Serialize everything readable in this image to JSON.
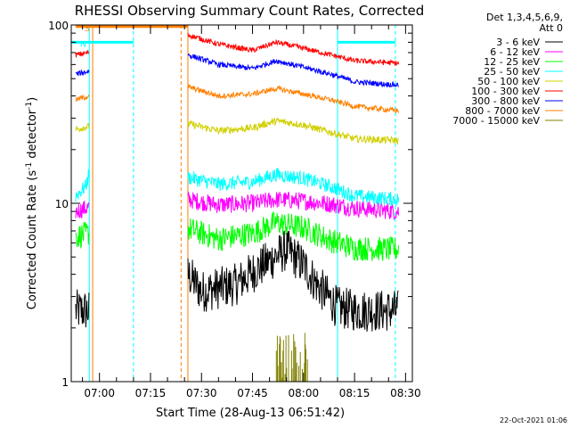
{
  "chart_data": {
    "type": "line",
    "title": "RHESSI Observing Summary Count Rates, Corrected",
    "xlabel": "Start Time (28-Aug-13 06:51:42)",
    "ylabel_main": "Corrected Count Rate (s",
    "ylabel_sup1": "-1",
    "ylabel_mid": " detector",
    "ylabel_sup2": "-1",
    "ylabel_end": ")",
    "yscale": "log",
    "ylim": [
      1,
      100
    ],
    "xlim": [
      "06:51:42",
      "08:32:00"
    ],
    "y_tick_labels": [
      {
        "label": "1",
        "value": 1
      },
      {
        "label": "10",
        "value": 10
      },
      {
        "label": "100",
        "value": 100
      }
    ],
    "x_tick_labels": [
      {
        "label": "07:00",
        "value": "07:00"
      },
      {
        "label": "07:15",
        "value": "07:15"
      },
      {
        "label": "07:30",
        "value": "07:30"
      },
      {
        "label": "07:45",
        "value": "07:45"
      },
      {
        "label": "08:00",
        "value": "08:00"
      },
      {
        "label": "08:15",
        "value": "08:15"
      },
      {
        "label": "08:30",
        "value": "08:30"
      }
    ],
    "legend_header": [
      "Det 1,3,4,5,6,9,",
      "Att 0"
    ],
    "legend_position": "right",
    "series": [
      {
        "name": "3 - 6 keV",
        "color": "#000000",
        "segments": [
          {
            "t": [
              "06:53",
              "06:57"
            ],
            "v": [
              2.5,
              2.5
            ],
            "noise": 0.12
          },
          {
            "t": [
              "07:26",
              "07:30",
              "07:40",
              "07:48",
              "07:55",
              "08:00",
              "08:04",
              "08:10",
              "08:16",
              "08:28"
            ],
            "v": [
              4.0,
              3.2,
              3.5,
              4.5,
              5.5,
              4.5,
              3.5,
              2.6,
              2.5,
              2.5
            ],
            "noise": 0.12
          }
        ]
      },
      {
        "name": "6 - 12 keV",
        "color": "#ff00ff",
        "segments": [
          {
            "t": [
              "06:53",
              "06:57"
            ],
            "v": [
              9.0,
              9.5
            ],
            "noise": 0.05
          },
          {
            "t": [
              "07:26",
              "07:35",
              "07:45",
              "07:52",
              "08:00",
              "08:08",
              "08:15",
              "08:28"
            ],
            "v": [
              10.5,
              9.8,
              10.0,
              10.5,
              10.3,
              9.9,
              9.4,
              9.0
            ],
            "noise": 0.05
          }
        ]
      },
      {
        "name": "12 - 25 keV",
        "color": "#00ff00",
        "segments": [
          {
            "t": [
              "06:53",
              "06:57"
            ],
            "v": [
              6.5,
              6.8
            ],
            "noise": 0.07
          },
          {
            "t": [
              "07:26",
              "07:35",
              "07:45",
              "07:52",
              "08:00",
              "08:08",
              "08:15",
              "08:28"
            ],
            "v": [
              7.2,
              6.3,
              6.8,
              7.8,
              7.3,
              6.2,
              5.6,
              5.5
            ],
            "noise": 0.07
          }
        ]
      },
      {
        "name": "25 - 50 keV",
        "color": "#00ffff",
        "segments": [
          {
            "t": [
              "06:53",
              "06:56",
              "06:57"
            ],
            "v": [
              11.0,
              12.5,
              15.0
            ],
            "noise": 0.04
          },
          {
            "t": [
              "07:26",
              "07:35",
              "07:45",
              "07:52",
              "08:00",
              "08:08",
              "08:15",
              "08:28"
            ],
            "v": [
              14.0,
              12.8,
              13.2,
              14.5,
              13.8,
              12.4,
              11.0,
              10.5
            ],
            "noise": 0.04
          }
        ]
      },
      {
        "name": "50 - 100 keV",
        "color": "#d0d000",
        "segments": [
          {
            "t": [
              "06:53",
              "06:57"
            ],
            "v": [
              26.0,
              27.0
            ],
            "noise": 0.02
          },
          {
            "t": [
              "07:26",
              "07:35",
              "07:45",
              "07:52",
              "08:00",
              "08:08",
              "08:15",
              "08:28"
            ],
            "v": [
              28.0,
              25.5,
              26.5,
              29.0,
              27.5,
              25.0,
              23.0,
              22.5
            ],
            "noise": 0.02
          }
        ]
      },
      {
        "name": "100 - 300 keV",
        "color": "#ff0000",
        "segments": [
          {
            "t": [
              "06:53",
              "06:57"
            ],
            "v": [
              68.0,
              70.0
            ],
            "noise": 0.015
          },
          {
            "t": [
              "07:26",
              "07:35",
              "07:45",
              "07:52",
              "08:00",
              "08:08",
              "08:15",
              "08:28"
            ],
            "v": [
              88.0,
              78.0,
              72.0,
              80.0,
              74.0,
              68.0,
              63.0,
              61.0
            ],
            "noise": 0.015
          }
        ]
      },
      {
        "name": "300 - 800 keV",
        "color": "#0000ff",
        "segments": [
          {
            "t": [
              "06:53",
              "06:57"
            ],
            "v": [
              53.0,
              55.0
            ],
            "noise": 0.015
          },
          {
            "t": [
              "07:26",
              "07:35",
              "07:45",
              "07:52",
              "08:00",
              "08:08",
              "08:15",
              "08:28"
            ],
            "v": [
              68.0,
              60.0,
              57.0,
              63.0,
              58.0,
              53.0,
              48.0,
              46.0
            ],
            "noise": 0.015
          }
        ]
      },
      {
        "name": "800 - 7000 keV",
        "color": "#ff8000",
        "segments": [
          {
            "t": [
              "06:53",
              "06:57"
            ],
            "v": [
              38.0,
              40.0
            ],
            "noise": 0.015
          },
          {
            "t": [
              "07:26",
              "07:35",
              "07:45",
              "07:52",
              "08:00",
              "08:08",
              "08:15",
              "08:28"
            ],
            "v": [
              45.0,
              40.0,
              41.0,
              44.0,
              41.0,
              38.0,
              35.0,
              33.0
            ],
            "noise": 0.015
          }
        ]
      },
      {
        "name": "7000 - 15000 keV",
        "color": "#808000",
        "segments": [
          {
            "t": [
              "07:52",
              "08:03"
            ],
            "v": [
              1.0,
              1.0
            ],
            "spikes": 1.9
          }
        ]
      }
    ],
    "flags": [
      {
        "label": "S",
        "color": "#ff8000",
        "t": [
          "06:53",
          "07:26"
        ],
        "level": 98
      },
      {
        "label": "N",
        "color": "#00ffff",
        "t": [
          "06:51:42",
          "07:10"
        ],
        "level": 80
      },
      {
        "label": "",
        "color": "#00ffff",
        "t": [
          "08:10",
          "08:27"
        ],
        "level": 80
      }
    ],
    "event_lines": [
      {
        "t": "06:51:42",
        "color": "#00ffff",
        "style": "solid"
      },
      {
        "t": "06:57",
        "color": "#00ffff",
        "style": "solid"
      },
      {
        "t": "06:58",
        "color": "#ff8000",
        "style": "solid"
      },
      {
        "t": "07:10",
        "color": "#00ffff",
        "style": "dashed"
      },
      {
        "t": "07:24",
        "color": "#ff8000",
        "style": "dashed"
      },
      {
        "t": "07:26",
        "color": "#ff8000",
        "style": "solid"
      },
      {
        "t": "08:10",
        "color": "#00ffff",
        "style": "solid"
      },
      {
        "t": "08:27",
        "color": "#00ffff",
        "style": "dashed"
      }
    ],
    "footer_date": "22-Oct-2021 01:06"
  }
}
